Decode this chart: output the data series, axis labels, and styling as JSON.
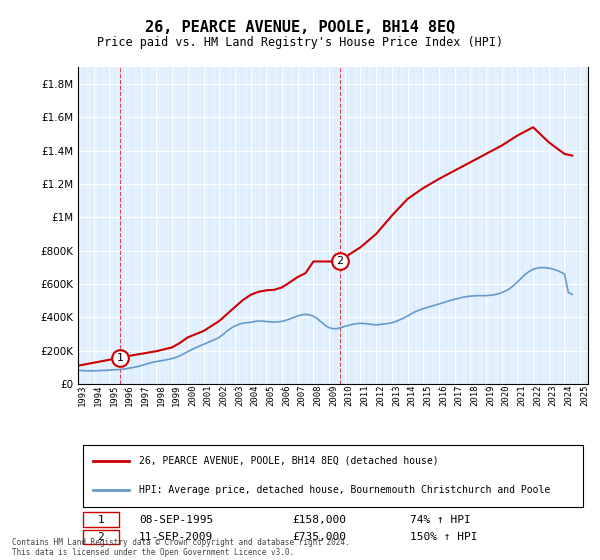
{
  "title": "26, PEARCE AVENUE, POOLE, BH14 8EQ",
  "subtitle": "Price paid vs. HM Land Registry's House Price Index (HPI)",
  "ylabel_ticks": [
    "£0",
    "£200K",
    "£400K",
    "£600K",
    "£800K",
    "£1M",
    "£1.2M",
    "£1.4M",
    "£1.6M",
    "£1.8M"
  ],
  "ytick_values": [
    0,
    200000,
    400000,
    600000,
    800000,
    1000000,
    1200000,
    1400000,
    1600000,
    1800000
  ],
  "ylim": [
    0,
    1900000
  ],
  "xlim_start": 1993,
  "xlim_end": 2025.5,
  "xtick_years": [
    1993,
    1994,
    1995,
    1996,
    1997,
    1998,
    1999,
    2000,
    2001,
    2002,
    2003,
    2004,
    2005,
    2006,
    2007,
    2008,
    2009,
    2010,
    2011,
    2012,
    2013,
    2014,
    2015,
    2016,
    2017,
    2018,
    2019,
    2020,
    2021,
    2022,
    2023,
    2024,
    2025
  ],
  "hpi_line_color": "#6699cc",
  "sale_line_color": "#cc0000",
  "background_color": "#ddeeff",
  "plot_bg_color": "#ddeeff",
  "grid_color": "#ffffff",
  "marker1_x": 1995.69,
  "marker1_y": 158000,
  "marker2_x": 2009.69,
  "marker2_y": 735000,
  "marker1_label": "1",
  "marker2_label": "2",
  "legend_sale_label": "26, PEARCE AVENUE, POOLE, BH14 8EQ (detached house)",
  "legend_hpi_label": "HPI: Average price, detached house, Bournemouth Christchurch and Poole",
  "table_row1": [
    "1",
    "08-SEP-1995",
    "£158,000",
    "74% ↑ HPI"
  ],
  "table_row2": [
    "2",
    "11-SEP-2009",
    "£735,000",
    "150% ↑ HPI"
  ],
  "footnote": "Contains HM Land Registry data © Crown copyright and database right 2024.\nThis data is licensed under the Open Government Licence v3.0.",
  "dashed_x1": 1995.69,
  "dashed_x2": 2009.69,
  "hpi_data_x": [
    1993.0,
    1993.25,
    1993.5,
    1993.75,
    1994.0,
    1994.25,
    1994.5,
    1994.75,
    1995.0,
    1995.25,
    1995.5,
    1995.75,
    1996.0,
    1996.25,
    1996.5,
    1996.75,
    1997.0,
    1997.25,
    1997.5,
    1997.75,
    1998.0,
    1998.25,
    1998.5,
    1998.75,
    1999.0,
    1999.25,
    1999.5,
    1999.75,
    2000.0,
    2000.25,
    2000.5,
    2000.75,
    2001.0,
    2001.25,
    2001.5,
    2001.75,
    2002.0,
    2002.25,
    2002.5,
    2002.75,
    2003.0,
    2003.25,
    2003.5,
    2003.75,
    2004.0,
    2004.25,
    2004.5,
    2004.75,
    2005.0,
    2005.25,
    2005.5,
    2005.75,
    2006.0,
    2006.25,
    2006.5,
    2006.75,
    2007.0,
    2007.25,
    2007.5,
    2007.75,
    2008.0,
    2008.25,
    2008.5,
    2008.75,
    2009.0,
    2009.25,
    2009.5,
    2009.75,
    2010.0,
    2010.25,
    2010.5,
    2010.75,
    2011.0,
    2011.25,
    2011.5,
    2011.75,
    2012.0,
    2012.25,
    2012.5,
    2012.75,
    2013.0,
    2013.25,
    2013.5,
    2013.75,
    2014.0,
    2014.25,
    2014.5,
    2014.75,
    2015.0,
    2015.25,
    2015.5,
    2015.75,
    2016.0,
    2016.25,
    2016.5,
    2016.75,
    2017.0,
    2017.25,
    2017.5,
    2017.75,
    2018.0,
    2018.25,
    2018.5,
    2018.75,
    2019.0,
    2019.25,
    2019.5,
    2019.75,
    2020.0,
    2020.25,
    2020.5,
    2020.75,
    2021.0,
    2021.25,
    2021.5,
    2021.75,
    2022.0,
    2022.25,
    2022.5,
    2022.75,
    2023.0,
    2023.25,
    2023.5,
    2023.75,
    2024.0,
    2024.25,
    2024.5
  ],
  "hpi_data_y": [
    82000,
    81000,
    80000,
    79000,
    79500,
    80000,
    81000,
    82000,
    84000,
    85000,
    86000,
    88000,
    91000,
    95000,
    99000,
    104000,
    110000,
    117000,
    124000,
    130000,
    135000,
    139000,
    143000,
    148000,
    153000,
    160000,
    170000,
    182000,
    195000,
    207000,
    218000,
    228000,
    238000,
    248000,
    258000,
    268000,
    280000,
    298000,
    318000,
    335000,
    348000,
    358000,
    365000,
    368000,
    370000,
    375000,
    378000,
    378000,
    375000,
    373000,
    372000,
    373000,
    376000,
    382000,
    390000,
    400000,
    408000,
    415000,
    418000,
    415000,
    407000,
    392000,
    372000,
    352000,
    338000,
    332000,
    332000,
    338000,
    346000,
    352000,
    358000,
    362000,
    364000,
    363000,
    360000,
    357000,
    355000,
    357000,
    360000,
    363000,
    368000,
    375000,
    385000,
    396000,
    408000,
    422000,
    434000,
    444000,
    452000,
    459000,
    466000,
    473000,
    480000,
    487000,
    495000,
    502000,
    508000,
    514000,
    520000,
    524000,
    527000,
    529000,
    530000,
    530000,
    530000,
    532000,
    535000,
    540000,
    548000,
    558000,
    572000,
    590000,
    612000,
    635000,
    658000,
    675000,
    688000,
    695000,
    698000,
    698000,
    695000,
    690000,
    682000,
    672000,
    660000,
    548000,
    538000
  ],
  "sale_data_x": [
    1993.0,
    1995.69,
    1995.69,
    1996.0,
    1997.0,
    1998.0,
    1999.0,
    1999.5,
    2000.0,
    2001.0,
    2002.0,
    2002.5,
    2003.0,
    2003.5,
    2004.0,
    2004.5,
    2005.0,
    2005.5,
    2006.0,
    2006.5,
    2007.0,
    2007.5,
    2008.0,
    2009.69,
    2009.69,
    2010.0,
    2011.0,
    2012.0,
    2013.0,
    2014.0,
    2015.0,
    2016.0,
    2017.0,
    2018.0,
    2019.0,
    2020.0,
    2021.0,
    2022.0,
    2023.0,
    2024.0,
    2024.5
  ],
  "sale_data_y": [
    110000,
    158000,
    158000,
    165000,
    181000,
    197000,
    220000,
    247000,
    280000,
    318000,
    378000,
    420000,
    462000,
    503000,
    535000,
    553000,
    562000,
    565000,
    580000,
    610000,
    642000,
    665000,
    735000,
    735000,
    735000,
    760000,
    820000,
    900000,
    1010000,
    1110000,
    1175000,
    1230000,
    1280000,
    1330000,
    1380000,
    1430000,
    1490000,
    1540000,
    1450000,
    1380000,
    1370000
  ]
}
